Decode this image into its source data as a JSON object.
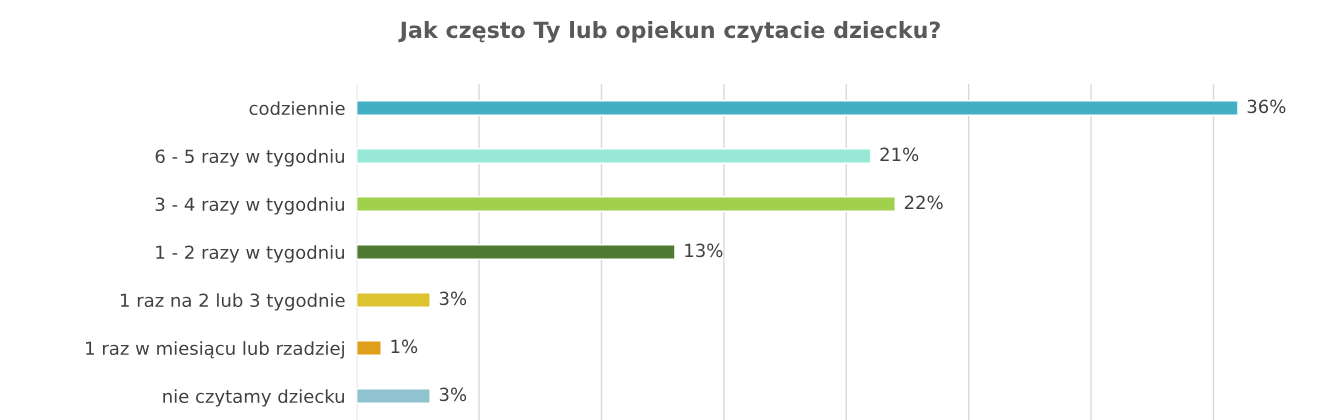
{
  "chart_data": {
    "type": "bar",
    "orientation": "horizontal",
    "title": "Jak często Ty lub opiekun czytacie dziecku?",
    "categories": [
      "codziennie",
      "6 - 5 razy w tygodniu",
      "3 - 4 razy w tygodniu",
      "1 - 2 razy w tygodniu",
      "1 raz na 2 lub 3 tygodnie",
      "1 raz w miesiącu lub rzadziej",
      "nie czytamy dziecku"
    ],
    "values": [
      36,
      21,
      22,
      13,
      3,
      1,
      3
    ],
    "value_labels": [
      "36%",
      "21%",
      "22%",
      "13%",
      "3%",
      "1%",
      "3%"
    ],
    "colors": [
      "#42b0c2",
      "#97e8d6",
      "#a0d04c",
      "#4e7a33",
      "#dbc42f",
      "#e09f1b",
      "#8fc3cf"
    ],
    "xticks": [
      {
        "value": 0,
        "label": null
      },
      {
        "value": 5,
        "label": null
      },
      {
        "value": 10,
        "label": null
      },
      {
        "value": 15,
        "label": null
      },
      {
        "value": 20,
        "label": null
      },
      {
        "value": 25,
        "label": null
      },
      {
        "value": 30,
        "label": null
      },
      {
        "value": 35,
        "label": null
      }
    ],
    "tick_labels": "y",
    "grid": "x"
  }
}
